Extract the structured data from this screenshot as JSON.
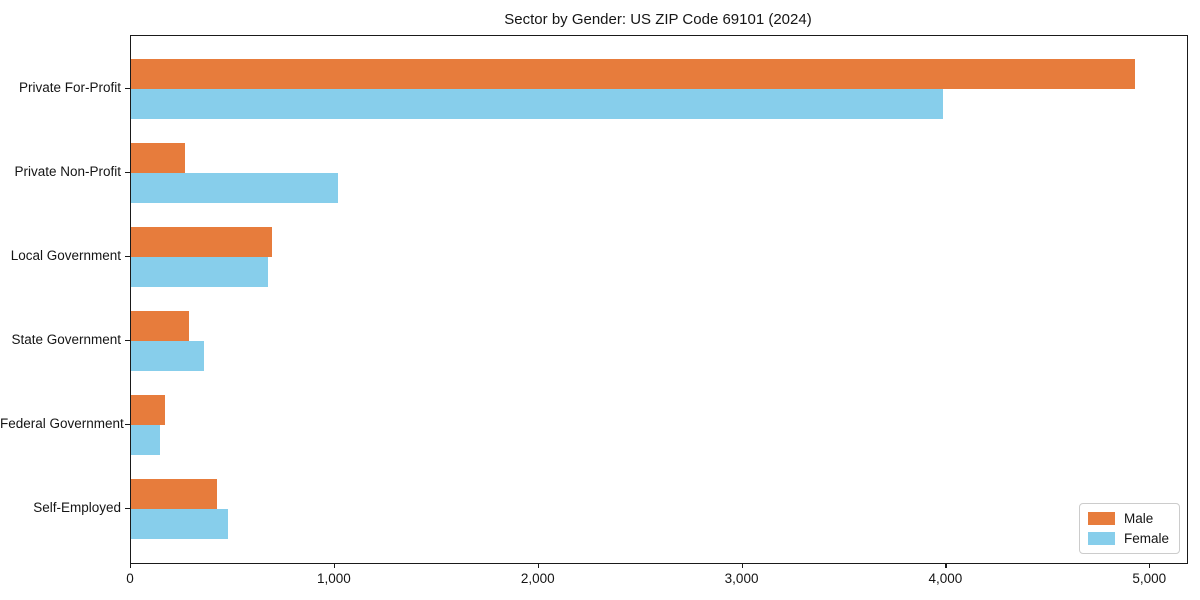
{
  "chart_data": {
    "type": "bar",
    "orientation": "horizontal",
    "title": "Sector by Gender: US ZIP Code 69101 (2024)",
    "categories": [
      "Private For-Profit",
      "Private Non-Profit",
      "Local Government",
      "State Government",
      "Federal Government",
      "Self-Employed"
    ],
    "series": [
      {
        "name": "Male",
        "color": "#E77C3C",
        "values": [
          4925,
          265,
          690,
          285,
          165,
          420
        ]
      },
      {
        "name": "Female",
        "color": "#87CEEB",
        "values": [
          3985,
          1015,
          670,
          360,
          140,
          475
        ]
      }
    ],
    "xlabel": "",
    "ylabel": "",
    "xlim": [
      0,
      5180
    ],
    "x_ticks": [
      0,
      1000,
      2000,
      3000,
      4000,
      5000
    ],
    "x_tick_labels": [
      "0",
      "1,000",
      "2,000",
      "3,000",
      "4,000",
      "5,000"
    ],
    "legend_position": "lower right",
    "grid": false,
    "spine_color": "#1a1a1a"
  }
}
